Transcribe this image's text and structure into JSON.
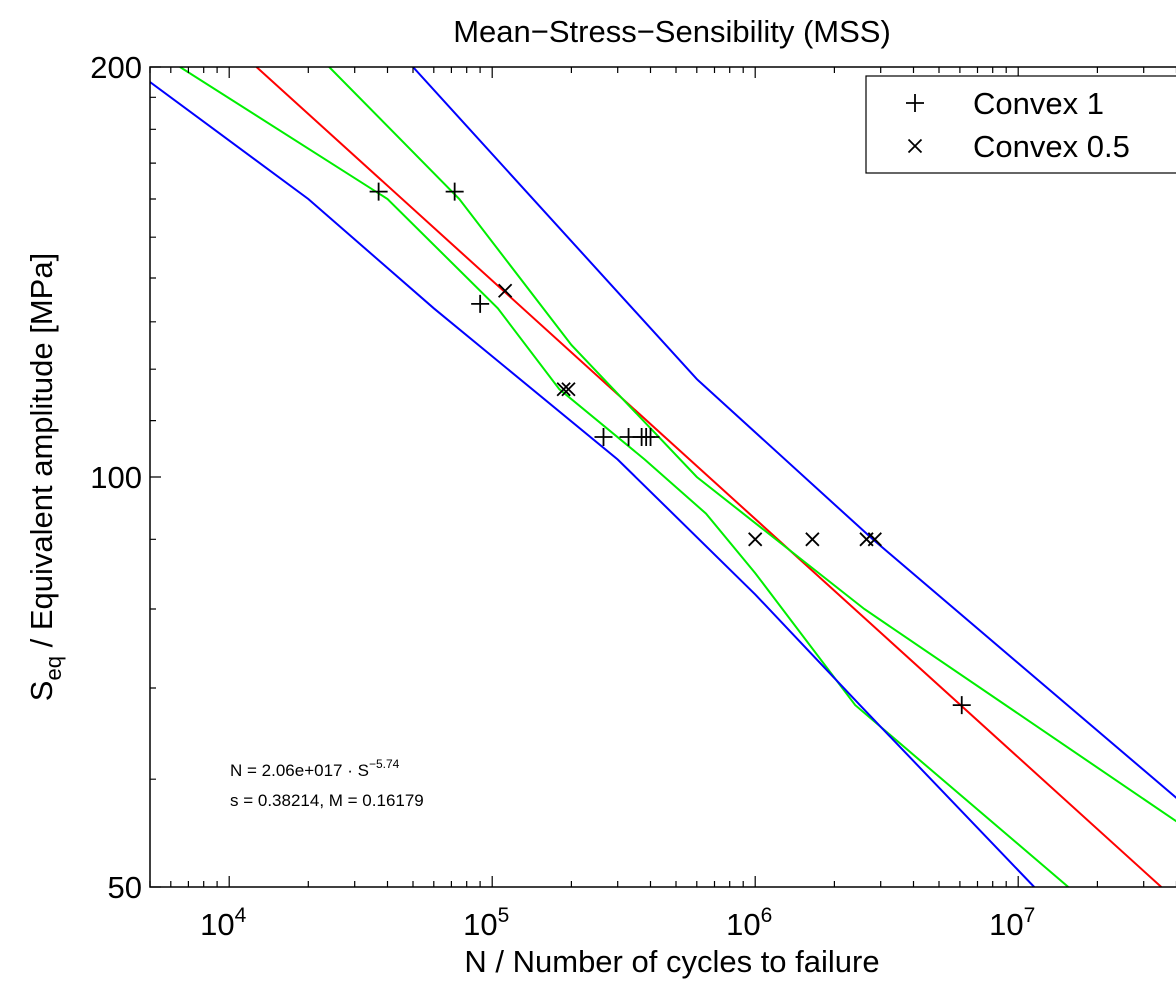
{
  "chart_data": {
    "type": "scatter",
    "title": "Mean−Stress−Sensibility (MSS)",
    "xlabel": "N / Number of cycles to failure",
    "ylabel_main": "S",
    "ylabel_sub": "eq",
    "ylabel_rest": " / Equivalent amplitude [MPa]",
    "x_scale": "log",
    "y_scale": "log",
    "xlim": [
      5000,
      45000000
    ],
    "ylim": [
      50,
      200
    ],
    "x_ticks": [
      {
        "value": 10000,
        "base": "10",
        "exp": "4"
      },
      {
        "value": 100000,
        "base": "10",
        "exp": "5"
      },
      {
        "value": 1000000,
        "base": "10",
        "exp": "6"
      },
      {
        "value": 10000000,
        "base": "10",
        "exp": "7"
      }
    ],
    "y_ticks": [
      {
        "value": 50,
        "label": "50"
      },
      {
        "value": 100,
        "label": "100"
      },
      {
        "value": 200,
        "label": "200"
      }
    ],
    "grid": false,
    "legend_position": "top-right",
    "series": [
      {
        "name": "Convex 1",
        "marker": "plus",
        "points": [
          [
            37000,
            162
          ],
          [
            72000,
            162
          ],
          [
            90000,
            134
          ],
          [
            265000,
            107
          ],
          [
            330000,
            107
          ],
          [
            370000,
            107
          ],
          [
            385000,
            107
          ],
          [
            400000,
            107
          ],
          [
            6100000,
            68
          ]
        ]
      },
      {
        "name": "Convex 0.5",
        "marker": "x",
        "points": [
          [
            112000,
            137
          ],
          [
            187000,
            116
          ],
          [
            195000,
            116
          ],
          [
            1000000,
            90
          ],
          [
            1650000,
            90
          ],
          [
            2650000,
            90
          ],
          [
            2850000,
            90
          ]
        ]
      }
    ],
    "lines": [
      {
        "role": "mean-fit",
        "color": "#ff0000",
        "points": [
          [
            12700,
            200
          ],
          [
            35000000,
            50
          ]
        ]
      },
      {
        "role": "band-inner-lower",
        "color": "#00ee00",
        "points": [
          [
            6500,
            200
          ],
          [
            40000,
            160
          ],
          [
            105000,
            133
          ],
          [
            180000,
            116
          ],
          [
            380000,
            103
          ],
          [
            650000,
            94
          ],
          [
            1000000,
            85
          ],
          [
            2400000,
            68
          ],
          [
            15500000,
            50
          ]
        ]
      },
      {
        "role": "band-inner-upper",
        "color": "#00ee00",
        "points": [
          [
            24000,
            200
          ],
          [
            75000,
            160
          ],
          [
            200000,
            125
          ],
          [
            600000,
            100
          ],
          [
            2600000,
            80
          ],
          [
            45000000,
            55
          ]
        ]
      },
      {
        "role": "band-outer-lower",
        "color": "#0000ff",
        "points": [
          [
            5000,
            195
          ],
          [
            20000,
            160
          ],
          [
            60000,
            133
          ],
          [
            300000,
            103
          ],
          [
            1000000,
            82
          ],
          [
            2500000,
            68
          ],
          [
            11500000,
            50
          ]
        ]
      },
      {
        "role": "band-outer-upper",
        "color": "#0000ff",
        "points": [
          [
            50000,
            200
          ],
          [
            600000,
            118
          ],
          [
            2800000,
            90
          ],
          [
            45000000,
            57
          ]
        ]
      }
    ],
    "annotations": [
      {
        "line1_prefix": "N = 2.06e+017 · S",
        "line1_exp": "−5.74",
        "line2": "s = 0.38214, M = 0.16179"
      }
    ]
  }
}
